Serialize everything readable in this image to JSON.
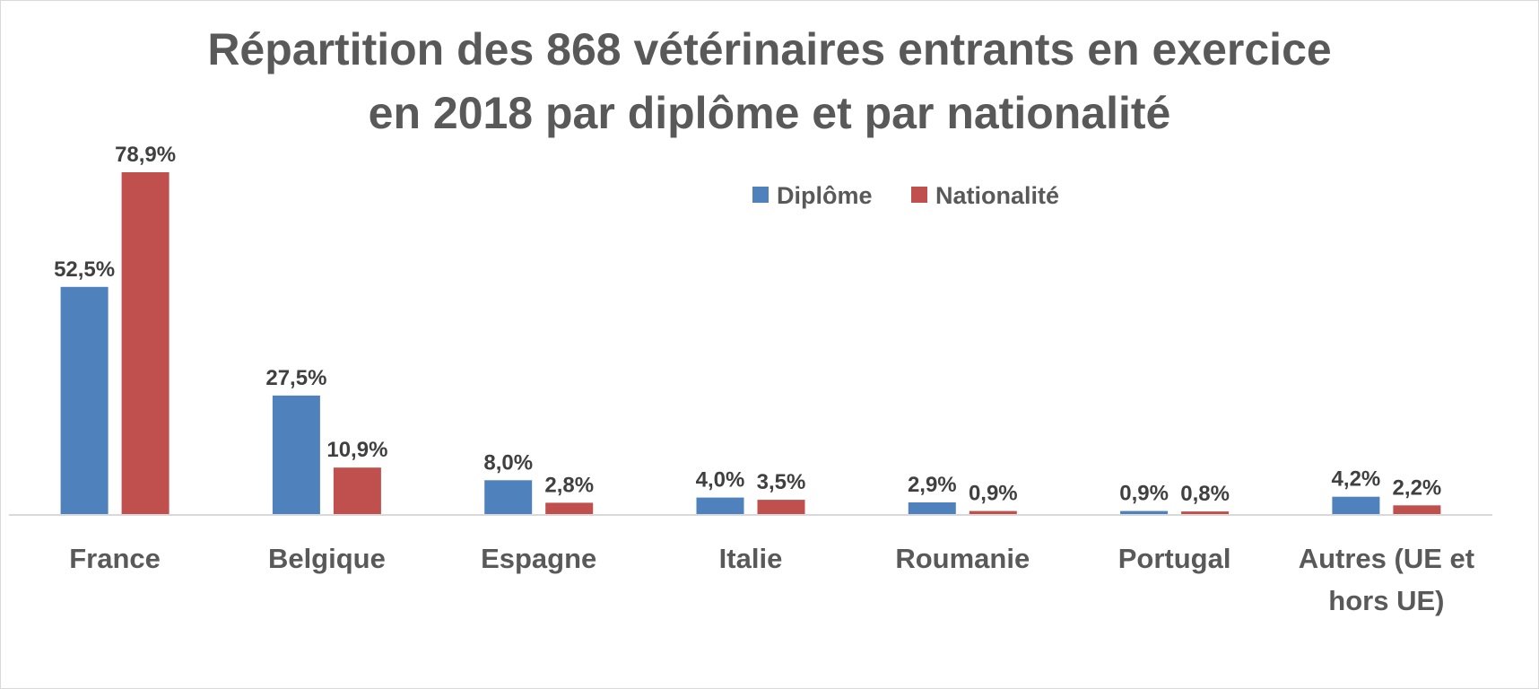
{
  "chart_data": {
    "type": "bar",
    "title": "Répartition des 868 vétérinaires entrants en exercice en 2018 par diplôme et par nationalité",
    "title_lines": [
      "Répartition des 868 vétérinaires entrants en exercice",
      "en 2018 par diplôme et par nationalité"
    ],
    "categories": [
      "France",
      "Belgique",
      "Espagne",
      "Italie",
      "Roumanie",
      "Portugal",
      "Autres (UE et hors UE)"
    ],
    "category_lines": [
      [
        "France"
      ],
      [
        "Belgique"
      ],
      [
        "Espagne"
      ],
      [
        "Italie"
      ],
      [
        "Roumanie"
      ],
      [
        "Portugal"
      ],
      [
        "Autres (UE et",
        "hors UE)"
      ]
    ],
    "series": [
      {
        "name": "Diplôme",
        "color": "#4f81bd",
        "values": [
          52.5,
          27.5,
          8.0,
          4.0,
          2.9,
          0.9,
          4.2
        ],
        "labels": [
          "52,5%",
          "27,5%",
          "8,0%",
          "4,0%",
          "2,9%",
          "0,9%",
          "4,2%"
        ]
      },
      {
        "name": "Nationalité",
        "color": "#c0504d",
        "values": [
          78.9,
          10.9,
          2.8,
          3.5,
          0.9,
          0.8,
          2.2
        ],
        "labels": [
          "78,9%",
          "10,9%",
          "2,8%",
          "3,5%",
          "0,9%",
          "0,8%",
          "2,2%"
        ]
      }
    ],
    "ylim": [
      0,
      80
    ],
    "unit": "%",
    "legend_position": "top-right",
    "gridlines": false,
    "axis_color": "#d9d9d9"
  }
}
